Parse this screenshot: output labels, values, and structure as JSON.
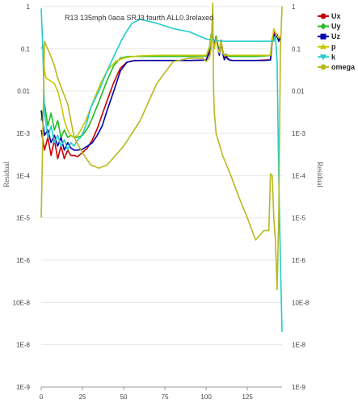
{
  "chart_data": {
    "type": "line",
    "title": "R13 135mph 0aoa SRJ3 fourth ALL0.3relaxed",
    "ylabel_left": "Residual",
    "ylabel_right": "Residual",
    "yscale": "log",
    "ylim": [
      1e-09,
      1
    ],
    "xlim": [
      0,
      146
    ],
    "xticks": [
      0,
      25,
      50,
      75,
      100,
      125
    ],
    "yticks": [
      {
        "value": 1,
        "label": "1"
      },
      {
        "value": 0.1,
        "label": "0.1"
      },
      {
        "value": 0.01,
        "label": "0.01"
      },
      {
        "value": 0.001,
        "label": "1E-3"
      },
      {
        "value": 0.0001,
        "label": "1E-4"
      },
      {
        "value": 1e-05,
        "label": "1E-5"
      },
      {
        "value": 1e-06,
        "label": "1E-6"
      },
      {
        "value": 1e-07,
        "label": "10E-8"
      },
      {
        "value": 1e-08,
        "label": "1E-8"
      },
      {
        "value": 1e-09,
        "label": "1E-9"
      }
    ],
    "legend_position": "top-right",
    "series": [
      {
        "name": "Ux",
        "color": "#cc0000",
        "marker": "circle",
        "x": [
          0,
          2,
          4,
          6,
          8,
          10,
          12,
          14,
          16,
          18,
          20,
          22,
          25,
          28,
          31,
          34,
          37,
          40,
          44,
          48,
          52,
          56,
          60,
          70,
          80,
          90,
          100,
          102,
          103,
          104,
          105,
          106,
          107,
          108,
          109,
          110,
          111,
          112,
          113,
          114,
          116,
          120,
          125,
          130,
          135,
          139,
          140,
          141,
          142,
          143,
          144,
          145
        ],
        "y": [
          0.0012,
          0.0004,
          0.0008,
          0.0003,
          0.0007,
          0.00025,
          0.0005,
          0.00025,
          0.0004,
          0.0003,
          0.0003,
          0.00028,
          0.00035,
          0.00045,
          0.0007,
          0.0013,
          0.0028,
          0.006,
          0.016,
          0.035,
          0.048,
          0.052,
          0.053,
          0.053,
          0.053,
          0.053,
          0.054,
          0.09,
          0.2,
          0.22,
          0.12,
          0.2,
          0.13,
          0.08,
          0.16,
          0.09,
          0.055,
          0.07,
          0.06,
          0.055,
          0.053,
          0.053,
          0.053,
          0.053,
          0.054,
          0.055,
          0.15,
          0.25,
          0.2,
          0.22,
          0.17,
          0.2
        ]
      },
      {
        "name": "Uy",
        "color": "#22bb22",
        "marker": "diamond",
        "x": [
          0,
          2,
          4,
          6,
          8,
          10,
          12,
          14,
          16,
          18,
          20,
          22,
          25,
          28,
          31,
          34,
          37,
          40,
          44,
          48,
          52,
          56,
          60,
          70,
          80,
          90,
          100,
          102,
          103,
          104,
          105,
          106,
          107,
          108,
          109,
          110,
          111,
          112,
          113,
          114,
          116,
          120,
          125,
          130,
          135,
          139,
          140,
          141,
          142,
          143,
          144,
          145
        ],
        "y": [
          0.002,
          0.005,
          0.0015,
          0.003,
          0.0012,
          0.002,
          0.0008,
          0.0012,
          0.0008,
          0.0009,
          0.0008,
          0.0008,
          0.0009,
          0.0013,
          0.0023,
          0.0045,
          0.009,
          0.018,
          0.04,
          0.06,
          0.065,
          0.066,
          0.066,
          0.066,
          0.066,
          0.066,
          0.067,
          0.11,
          0.22,
          0.2,
          0.13,
          0.2,
          0.12,
          0.09,
          0.15,
          0.08,
          0.07,
          0.075,
          0.068,
          0.066,
          0.066,
          0.066,
          0.066,
          0.066,
          0.067,
          0.07,
          0.18,
          0.22,
          0.18,
          0.2,
          0.15,
          0.18
        ]
      },
      {
        "name": "Uz",
        "color": "#0000aa",
        "marker": "square",
        "x": [
          0,
          2,
          4,
          6,
          8,
          10,
          12,
          14,
          16,
          18,
          20,
          22,
          25,
          28,
          31,
          34,
          37,
          40,
          44,
          48,
          52,
          56,
          60,
          70,
          80,
          90,
          100,
          102,
          103,
          104,
          105,
          106,
          107,
          108,
          109,
          110,
          111,
          112,
          113,
          114,
          116,
          120,
          125,
          130,
          135,
          139,
          140,
          141,
          142,
          143,
          144,
          145
        ],
        "y": [
          0.0035,
          0.0009,
          0.0012,
          0.0006,
          0.0009,
          0.0005,
          0.0008,
          0.0004,
          0.0006,
          0.00045,
          0.0004,
          0.0004,
          0.00042,
          0.0005,
          0.0006,
          0.0009,
          0.0015,
          0.0035,
          0.01,
          0.03,
          0.048,
          0.052,
          0.053,
          0.053,
          0.053,
          0.053,
          0.054,
          0.08,
          0.18,
          0.2,
          0.12,
          0.18,
          0.11,
          0.07,
          0.14,
          0.08,
          0.055,
          0.065,
          0.058,
          0.054,
          0.053,
          0.053,
          0.053,
          0.053,
          0.053,
          0.054,
          0.14,
          0.22,
          0.18,
          0.2,
          0.15,
          0.18
        ]
      },
      {
        "name": "p",
        "color": "#c8c800",
        "marker": "triangle",
        "x": [
          0,
          1,
          2,
          3,
          5,
          8,
          10,
          12,
          14,
          16,
          18,
          20,
          22,
          24,
          27,
          30,
          33,
          36,
          40,
          45,
          50,
          55,
          60,
          70,
          80,
          90,
          100,
          102,
          103,
          104,
          105,
          106,
          107,
          108,
          109,
          110,
          111,
          112,
          113,
          114,
          116,
          120,
          125,
          130,
          135,
          139,
          140,
          141,
          142,
          143,
          144,
          145
        ],
        "y": [
          0.1,
          0.12,
          0.03,
          0.02,
          0.018,
          0.015,
          0.01,
          0.005,
          0.002,
          0.0012,
          0.0009,
          0.0008,
          0.0009,
          0.0012,
          0.002,
          0.004,
          0.008,
          0.015,
          0.03,
          0.05,
          0.06,
          0.065,
          0.068,
          0.07,
          0.07,
          0.07,
          0.07,
          0.1,
          0.2,
          0.22,
          0.1,
          0.18,
          0.1,
          0.08,
          0.15,
          0.08,
          0.07,
          0.07,
          0.07,
          0.07,
          0.07,
          0.07,
          0.07,
          0.07,
          0.07,
          0.07,
          0.15,
          0.3,
          0.25,
          0.2,
          0.18,
          0.2
        ]
      },
      {
        "name": "k",
        "color": "#22cccc",
        "marker": "triangle-down",
        "x": [
          0,
          1,
          2,
          4,
          6,
          8,
          10,
          12,
          14,
          16,
          18,
          20,
          22,
          24,
          26,
          28,
          30,
          35,
          40,
          45,
          50,
          55,
          60,
          70,
          80,
          90,
          100,
          105,
          110,
          120,
          130,
          138,
          140,
          141,
          142,
          143,
          144,
          145,
          146
        ],
        "y": [
          0.9,
          0.1,
          0.003,
          0.0008,
          0.0015,
          0.0006,
          0.0009,
          0.0005,
          0.0007,
          0.0004,
          0.0006,
          0.0005,
          0.0007,
          0.0008,
          0.0012,
          0.002,
          0.004,
          0.01,
          0.03,
          0.08,
          0.2,
          0.4,
          0.5,
          0.4,
          0.3,
          0.25,
          0.17,
          0.16,
          0.15,
          0.15,
          0.15,
          0.15,
          0.15,
          0.15,
          0.2,
          0.05,
          0.0001,
          1e-06,
          2e-08
        ]
      },
      {
        "name": "omega",
        "color": "#b8b820",
        "marker": "circle",
        "x": [
          0,
          1,
          2,
          3,
          5,
          8,
          10,
          13,
          16,
          18,
          20,
          25,
          30,
          35,
          40,
          50,
          60,
          70,
          80,
          90,
          98,
          100,
          102,
          103,
          104,
          104.5,
          105,
          106,
          110,
          115,
          120,
          125,
          130,
          135,
          138,
          139,
          140,
          141,
          142,
          143,
          144,
          145,
          146
        ],
        "y": [
          1e-05,
          0.001,
          0.15,
          0.12,
          0.08,
          0.04,
          0.02,
          0.01,
          0.005,
          0.002,
          0.0008,
          0.00035,
          0.00018,
          0.00015,
          0.00018,
          0.0005,
          0.002,
          0.015,
          0.05,
          0.06,
          0.06,
          0.05,
          0.06,
          0.1,
          1.2,
          0.01,
          0.003,
          0.001,
          0.0003,
          0.0001,
          3e-05,
          1e-05,
          3e-06,
          5e-06,
          5e-06,
          0.00011,
          0.0001,
          1e-05,
          3e-06,
          2e-07,
          1e-05,
          0.1,
          1.0
        ]
      }
    ]
  }
}
